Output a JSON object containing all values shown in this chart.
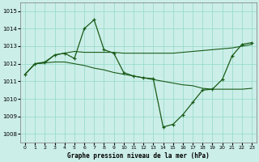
{
  "xlabel": "Graphe pression niveau de la mer (hPa)",
  "background_color": "#cceee8",
  "line_color": "#1a5c1a",
  "grid_color": "#99ddcc",
  "ylim": [
    1007.5,
    1015.5
  ],
  "xlim": [
    -0.5,
    23.5
  ],
  "yticks": [
    1008,
    1009,
    1010,
    1011,
    1012,
    1013,
    1014,
    1015
  ],
  "xticks": [
    0,
    1,
    2,
    3,
    4,
    5,
    6,
    7,
    8,
    9,
    10,
    11,
    12,
    13,
    14,
    15,
    16,
    17,
    18,
    19,
    20,
    21,
    22,
    23
  ],
  "series_marked": [
    1011.4,
    1012.0,
    1012.1,
    1012.5,
    1012.6,
    1012.3,
    1014.0,
    1014.5,
    1012.8,
    1012.6,
    1011.5,
    1011.3,
    1011.2,
    1011.15,
    1008.4,
    1008.55,
    1009.1,
    1009.8,
    1010.5,
    1010.55,
    1011.1,
    1012.45,
    1013.1,
    1013.2
  ],
  "series_flat": [
    1011.4,
    1012.0,
    1012.05,
    1012.5,
    1012.6,
    1012.7,
    1012.65,
    1012.65,
    1012.65,
    1012.65,
    1012.6,
    1012.6,
    1012.6,
    1012.6,
    1012.6,
    1012.6,
    1012.65,
    1012.7,
    1012.75,
    1012.8,
    1012.85,
    1012.9,
    1013.0,
    1013.1
  ],
  "series_slope": [
    1011.4,
    1012.0,
    1012.05,
    1012.1,
    1012.1,
    1012.0,
    1011.9,
    1011.75,
    1011.65,
    1011.5,
    1011.4,
    1011.3,
    1011.2,
    1011.1,
    1011.0,
    1010.9,
    1010.8,
    1010.75,
    1010.6,
    1010.55,
    1010.55,
    1010.55,
    1010.55,
    1010.6
  ]
}
